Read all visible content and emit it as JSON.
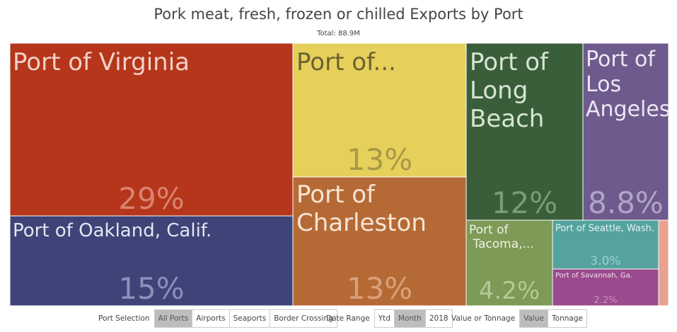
{
  "title": "Pork meat, fresh, frozen or chilled Exports by Port",
  "subtitle": "Total: 88.9M",
  "chart_data": {
    "type": "treemap",
    "total_label": "Total: 88.9M",
    "tiles": [
      {
        "label": "Port of Virginia",
        "percent_label": "29%",
        "value": 29,
        "color": "#b5361a",
        "text_color": "#f2d1c8",
        "pct_color": "#d9846f"
      },
      {
        "label": "Port of...",
        "percent_label": "13%",
        "value": 13,
        "color": "#e6d05b",
        "text_color": "#6b6230",
        "pct_color": "#a89848"
      },
      {
        "label": "Port of\nLong\nBeach",
        "percent_label": "12%",
        "value": 12,
        "color": "#3a5e3a",
        "text_color": "#d7e4d4",
        "pct_color": "#7a9a78"
      },
      {
        "label": "Port of\nLos\nAngeles",
        "percent_label": "8.8%",
        "value": 8.8,
        "color": "#6e5a8c",
        "text_color": "#ece6f3",
        "pct_color": "#b2a4c8"
      },
      {
        "label": "Port of Oakland, Calif.",
        "percent_label": "15%",
        "value": 15,
        "color": "#3e4478",
        "text_color": "#e3e5f0",
        "pct_color": "#8a90b8"
      },
      {
        "label": "Port of\nCharleston",
        "percent_label": "13%",
        "value": 13,
        "color": "#b56a36",
        "text_color": "#f7e4d4",
        "pct_color": "#d9a07a"
      },
      {
        "label": "Port of\n  Tacoma,...",
        "percent_label": "4.2%",
        "value": 4.2,
        "color": "#7d9a56",
        "text_color": "#eef3e4",
        "pct_color": "#b6c996"
      },
      {
        "label": "Port of Seattle, Wash.",
        "percent_label": "3.0%",
        "value": 3.0,
        "color": "#55a39e",
        "text_color": "#e5f3f1",
        "pct_color": "#9fd0cc"
      },
      {
        "label": "Port of Savannah, Ga.",
        "percent_label": "2.2%",
        "value": 2.2,
        "color": "#9a4a8e",
        "text_color": "#f3e3ef",
        "pct_color": "#cc92c2"
      },
      {
        "label": "",
        "percent_label": "",
        "value": 0.6,
        "color": "#e8a290",
        "text_color": "#ffffff",
        "pct_color": "#ffffff"
      }
    ]
  },
  "controls": {
    "port_selection": {
      "label": "Port Selection",
      "options": [
        "All Ports",
        "Airports",
        "Seaports",
        "Border Crossing"
      ],
      "selected": "All Ports"
    },
    "date_range": {
      "label": "Date Range",
      "options": [
        "Ytd",
        "Month",
        "2018"
      ],
      "selected": "Month"
    },
    "value_or_tonnage": {
      "label": "Value or Tonnage",
      "options": [
        "Value",
        "Tonnage"
      ],
      "selected": "Value"
    }
  }
}
